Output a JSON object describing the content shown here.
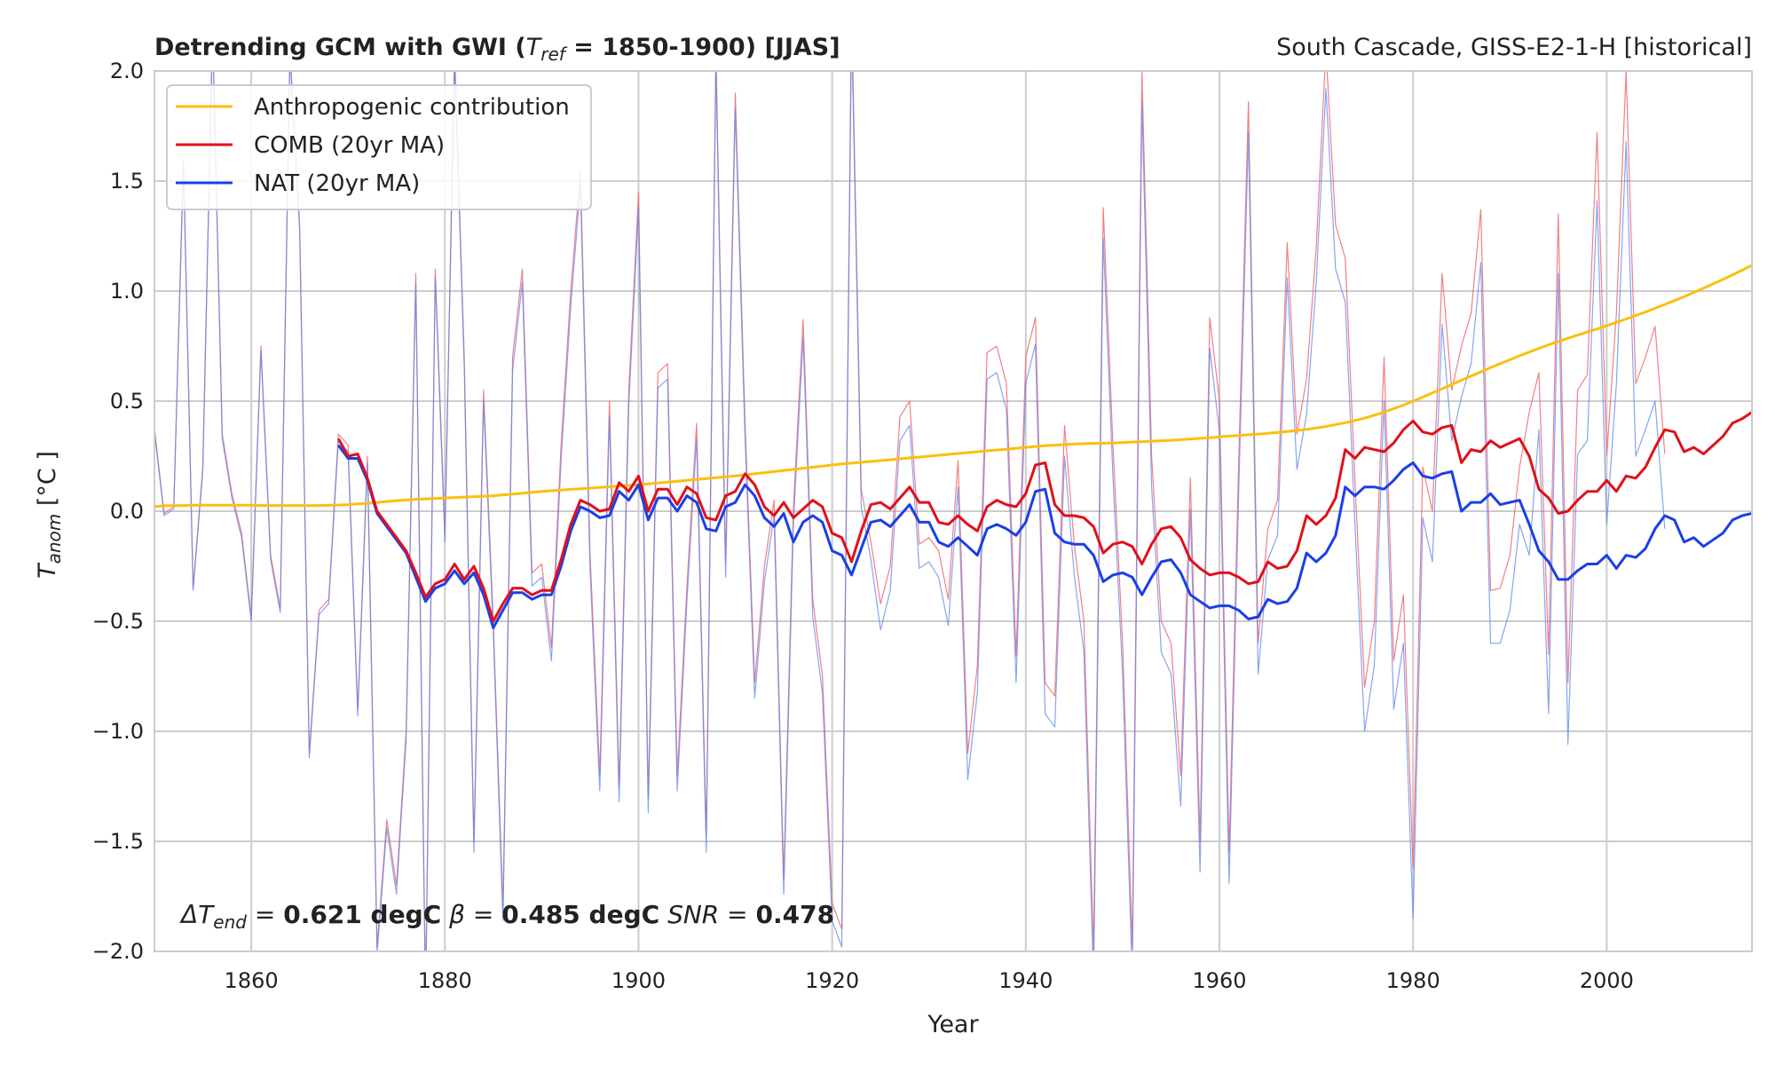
{
  "chart_data": {
    "type": "line",
    "title": "Detrending GCM with GWI (T_ref = 1850-1900) [JJAS]",
    "title_parts": {
      "prefix": "Detrending GCM with GWI (",
      "sym": "T",
      "sub": "ref",
      "suffix": " = 1850-1900) [JJAS]"
    },
    "subtitle_right": "South Cascade, GISS-E2-1-H [historical]",
    "xlabel": "Year",
    "ylabel": {
      "sym": "T",
      "sub": "anom",
      "unit": " [°C ]"
    },
    "xlim": [
      1850,
      2015
    ],
    "ylim": [
      -2.0,
      2.0
    ],
    "xticks": [
      1860,
      1880,
      1900,
      1920,
      1940,
      1960,
      1980,
      2000
    ],
    "yticks": [
      -2.0,
      -1.5,
      -1.0,
      -0.5,
      0.0,
      0.5,
      1.0,
      1.5,
      2.0
    ],
    "ytick_labels": [
      "−2.0",
      "−1.5",
      "−1.0",
      "−0.5",
      "0.0",
      "0.5",
      "1.0",
      "1.5",
      "2.0"
    ],
    "grid": true,
    "legend_position": "top-left",
    "annotation": {
      "p1": "ΔT",
      "p1sub": "end",
      "p1eq": " = ",
      "p1val": "0.621 degC",
      "p2": " β",
      "p2eq": " = ",
      "p2val": "0.485 degC",
      "p3": " SNR",
      "p3eq": " =  ",
      "p3val": "0.478"
    },
    "colors": {
      "anthro": "#fbbf0f",
      "comb": "#e0101a",
      "nat": "#1a3fe8",
      "comb_raw": "#ee6a70",
      "nat_raw": "#5f85ee"
    },
    "series": [
      {
        "name": "Anthropogenic contribution",
        "color": "#fbbf0f",
        "x_start": 1850,
        "values": [
          0.02,
          0.025,
          0.025,
          0.026,
          0.027,
          0.027,
          0.027,
          0.027,
          0.027,
          0.027,
          0.027,
          0.026,
          0.026,
          0.026,
          0.026,
          0.026,
          0.026,
          0.026,
          0.027,
          0.028,
          0.03,
          0.033,
          0.036,
          0.04,
          0.044,
          0.048,
          0.051,
          0.054,
          0.056,
          0.058,
          0.06,
          0.062,
          0.064,
          0.066,
          0.068,
          0.07,
          0.074,
          0.078,
          0.082,
          0.086,
          0.09,
          0.093,
          0.096,
          0.099,
          0.102,
          0.105,
          0.108,
          0.111,
          0.114,
          0.117,
          0.12,
          0.124,
          0.128,
          0.132,
          0.136,
          0.14,
          0.144,
          0.148,
          0.152,
          0.156,
          0.16,
          0.165,
          0.17,
          0.175,
          0.18,
          0.185,
          0.19,
          0.195,
          0.2,
          0.205,
          0.21,
          0.214,
          0.218,
          0.222,
          0.226,
          0.23,
          0.234,
          0.238,
          0.242,
          0.246,
          0.25,
          0.254,
          0.258,
          0.262,
          0.266,
          0.27,
          0.274,
          0.278,
          0.282,
          0.286,
          0.29,
          0.294,
          0.298,
          0.3,
          0.303,
          0.305,
          0.307,
          0.308,
          0.309,
          0.31,
          0.312,
          0.314,
          0.316,
          0.318,
          0.32,
          0.322,
          0.325,
          0.328,
          0.331,
          0.334,
          0.338,
          0.341,
          0.344,
          0.347,
          0.35,
          0.354,
          0.358,
          0.362,
          0.367,
          0.372,
          0.378,
          0.385,
          0.393,
          0.402,
          0.412,
          0.423,
          0.436,
          0.45,
          0.466,
          0.482,
          0.5,
          0.518,
          0.537,
          0.556,
          0.576,
          0.595,
          0.614,
          0.633,
          0.652,
          0.67,
          0.688,
          0.706,
          0.723,
          0.74,
          0.756,
          0.771,
          0.786,
          0.8,
          0.814,
          0.828,
          0.843,
          0.858,
          0.873,
          0.889,
          0.905,
          0.922,
          0.939,
          0.957,
          0.975,
          0.994,
          1.013,
          1.033,
          1.053,
          1.074,
          1.095,
          1.117,
          1.14
        ]
      },
      {
        "name": "COMB (20yr MA)",
        "color": "#e0101a",
        "x_start": 1869,
        "values": [
          0.33,
          0.25,
          0.26,
          0.15,
          0.0,
          -0.06,
          -0.12,
          -0.18,
          -0.28,
          -0.39,
          -0.33,
          -0.31,
          -0.24,
          -0.31,
          -0.25,
          -0.35,
          -0.5,
          -0.42,
          -0.35,
          -0.35,
          -0.38,
          -0.36,
          -0.36,
          -0.22,
          -0.06,
          0.05,
          0.03,
          0.0,
          0.01,
          0.13,
          0.09,
          0.16,
          0.0,
          0.1,
          0.1,
          0.03,
          0.11,
          0.08,
          -0.03,
          -0.04,
          0.07,
          0.09,
          0.17,
          0.12,
          0.02,
          -0.02,
          0.04,
          -0.03,
          0.01,
          0.05,
          0.02,
          -0.1,
          -0.12,
          -0.23,
          -0.09,
          0.03,
          0.04,
          0.01,
          0.06,
          0.11,
          0.04,
          0.04,
          -0.05,
          -0.06,
          -0.02,
          -0.06,
          -0.09,
          0.02,
          0.05,
          0.03,
          0.02,
          0.08,
          0.21,
          0.22,
          0.03,
          -0.02,
          -0.02,
          -0.03,
          -0.07,
          -0.19,
          -0.15,
          -0.14,
          -0.16,
          -0.24,
          -0.15,
          -0.08,
          -0.07,
          -0.12,
          -0.22,
          -0.26,
          -0.29,
          -0.28,
          -0.28,
          -0.3,
          -0.33,
          -0.32,
          -0.23,
          -0.26,
          -0.25,
          -0.18,
          -0.02,
          -0.06,
          -0.02,
          0.06,
          0.28,
          0.24,
          0.29,
          0.28,
          0.27,
          0.31,
          0.37,
          0.41,
          0.36,
          0.35,
          0.38,
          0.39,
          0.22,
          0.28,
          0.27,
          0.32,
          0.29,
          0.31,
          0.33,
          0.25,
          0.1,
          0.06,
          -0.01,
          0.0,
          0.05,
          0.09,
          0.09,
          0.14,
          0.09,
          0.16,
          0.15,
          0.2,
          0.29,
          0.37,
          0.36,
          0.27,
          0.29,
          0.26,
          0.3,
          0.34,
          0.4,
          0.42,
          0.45
        ]
      },
      {
        "name": "NAT (20yr MA)",
        "color": "#1a3fe8",
        "x_start": 1869,
        "values": [
          0.3,
          0.24,
          0.24,
          0.14,
          -0.01,
          -0.07,
          -0.13,
          -0.19,
          -0.3,
          -0.41,
          -0.35,
          -0.33,
          -0.27,
          -0.33,
          -0.28,
          -0.38,
          -0.53,
          -0.45,
          -0.37,
          -0.37,
          -0.4,
          -0.38,
          -0.38,
          -0.25,
          -0.09,
          0.02,
          0.0,
          -0.03,
          -0.02,
          0.09,
          0.05,
          0.12,
          -0.04,
          0.06,
          0.06,
          0.0,
          0.07,
          0.04,
          -0.08,
          -0.09,
          0.02,
          0.04,
          0.12,
          0.07,
          -0.03,
          -0.07,
          -0.01,
          -0.14,
          -0.05,
          -0.02,
          -0.05,
          -0.18,
          -0.2,
          -0.29,
          -0.17,
          -0.05,
          -0.04,
          -0.07,
          -0.02,
          0.03,
          -0.05,
          -0.05,
          -0.14,
          -0.16,
          -0.12,
          -0.16,
          -0.2,
          -0.08,
          -0.06,
          -0.08,
          -0.11,
          -0.05,
          0.09,
          0.1,
          -0.1,
          -0.14,
          -0.15,
          -0.15,
          -0.2,
          -0.32,
          -0.29,
          -0.28,
          -0.3,
          -0.38,
          -0.3,
          -0.23,
          -0.22,
          -0.28,
          -0.38,
          -0.41,
          -0.44,
          -0.43,
          -0.43,
          -0.45,
          -0.49,
          -0.48,
          -0.4,
          -0.42,
          -0.41,
          -0.35,
          -0.19,
          -0.23,
          -0.19,
          -0.11,
          0.11,
          0.07,
          0.11,
          0.11,
          0.1,
          0.14,
          0.19,
          0.22,
          0.16,
          0.15,
          0.17,
          0.18,
          0.0,
          0.04,
          0.04,
          0.08,
          0.03,
          0.04,
          0.05,
          -0.06,
          -0.18,
          -0.23,
          -0.31,
          -0.31,
          -0.27,
          -0.24,
          -0.24,
          -0.2,
          -0.26,
          -0.2,
          -0.21,
          -0.17,
          -0.08,
          -0.02,
          -0.04,
          -0.14,
          -0.12,
          -0.16,
          -0.13,
          -0.1,
          -0.04,
          -0.02,
          -0.01
        ]
      },
      {
        "name": "COMB annual",
        "color": "#ee6a70",
        "x_start": 1850,
        "values": [
          0.38,
          -0.01,
          0.02,
          1.6,
          -0.35,
          0.2,
          2.2,
          0.35,
          0.08,
          -0.1,
          -0.48,
          0.75,
          -0.2,
          -0.44,
          2.1,
          1.3,
          -1.1,
          -0.45,
          -0.4,
          0.35,
          0.3,
          -0.9,
          0.25,
          -1.98,
          -1.4,
          -1.7,
          -1.0,
          1.08,
          -2.2,
          1.1,
          -0.1,
          2.1,
          0.7,
          -1.5,
          0.55,
          -0.5,
          -1.8,
          0.7,
          1.1,
          -0.28,
          -0.24,
          -0.62,
          0.3,
          1.0,
          1.55,
          -0.2,
          -1.2,
          0.5,
          -1.25,
          0.55,
          1.45,
          -1.3,
          0.63,
          0.67,
          -1.2,
          -0.34,
          0.4,
          -1.48,
          2.1,
          -0.23,
          1.9,
          0.4,
          -0.78,
          -0.25,
          0.05,
          -1.67,
          0.02,
          0.87,
          -0.4,
          -0.75,
          -1.78,
          -1.9,
          2.3,
          0.1,
          -0.14,
          -0.42,
          -0.25,
          0.43,
          0.5,
          -0.15,
          -0.12,
          -0.18,
          -0.4,
          0.23,
          -1.1,
          -0.7,
          0.72,
          0.75,
          0.58,
          -0.66,
          0.7,
          0.88,
          -0.78,
          -0.84,
          0.39,
          -0.15,
          -0.5,
          -2.0,
          1.38,
          0.3,
          -0.6,
          -1.98,
          2.0,
          0.25,
          -0.5,
          -0.6,
          -1.2,
          0.15,
          -1.5,
          0.88,
          0.5,
          -1.55,
          0.24,
          1.86,
          -0.6,
          -0.08,
          0.05,
          1.22,
          0.35,
          0.6,
          1.2,
          2.1,
          1.3,
          1.15,
          0.14,
          -0.8,
          -0.5,
          0.7,
          -0.68,
          -0.38,
          -1.62,
          0.2,
          0.0,
          1.08,
          0.55,
          0.75,
          0.9,
          1.37,
          -0.36,
          -0.35,
          -0.2,
          0.2,
          0.45,
          0.63,
          -0.65,
          1.35,
          -0.78,
          0.55,
          0.62,
          1.72,
          0.25,
          0.9,
          2.0,
          0.58,
          0.7,
          0.84,
          0.26
        ]
      },
      {
        "name": "NAT annual",
        "color": "#5f85ee",
        "x_start": 1850,
        "values": [
          0.36,
          -0.02,
          0.01,
          1.58,
          -0.36,
          0.18,
          2.18,
          0.33,
          0.06,
          -0.12,
          -0.5,
          0.73,
          -0.22,
          -0.46,
          2.08,
          1.28,
          -1.12,
          -0.47,
          -0.42,
          0.32,
          0.27,
          -0.93,
          0.22,
          -2.01,
          -1.44,
          -1.74,
          -1.04,
          1.04,
          -2.24,
          1.06,
          -0.14,
          2.05,
          0.65,
          -1.55,
          0.5,
          -0.55,
          -1.86,
          0.64,
          1.04,
          -0.34,
          -0.3,
          -0.68,
          0.23,
          0.93,
          1.48,
          -0.27,
          -1.27,
          0.43,
          -1.32,
          0.48,
          1.38,
          -1.37,
          0.56,
          0.6,
          -1.27,
          -0.41,
          0.33,
          -1.55,
          2.03,
          -0.3,
          1.83,
          0.33,
          -0.85,
          -0.32,
          -0.02,
          -1.74,
          -0.06,
          0.79,
          -0.48,
          -0.83,
          -1.86,
          -1.98,
          2.22,
          0.02,
          -0.22,
          -0.54,
          -0.36,
          0.32,
          0.39,
          -0.26,
          -0.23,
          -0.3,
          -0.52,
          0.11,
          -1.22,
          -0.82,
          0.6,
          0.63,
          0.46,
          -0.78,
          0.58,
          0.76,
          -0.92,
          -0.98,
          0.25,
          -0.29,
          -0.64,
          -2.14,
          1.24,
          0.16,
          -0.74,
          -2.12,
          1.86,
          0.11,
          -0.64,
          -0.74,
          -1.34,
          0.01,
          -1.64,
          0.74,
          0.36,
          -1.69,
          0.1,
          1.72,
          -0.74,
          -0.22,
          -0.11,
          1.06,
          0.19,
          0.44,
          1.04,
          1.92,
          1.1,
          0.95,
          -0.06,
          -1.0,
          -0.7,
          0.5,
          -0.9,
          -0.6,
          -1.85,
          -0.03,
          -0.23,
          0.85,
          0.32,
          0.52,
          0.67,
          1.13,
          -0.6,
          -0.6,
          -0.45,
          -0.06,
          -0.2,
          0.37,
          -0.92,
          1.08,
          -1.06,
          0.26,
          0.32,
          1.41,
          -0.06,
          0.58,
          1.68,
          0.25,
          0.37,
          0.5,
          -0.08
        ]
      }
    ]
  }
}
